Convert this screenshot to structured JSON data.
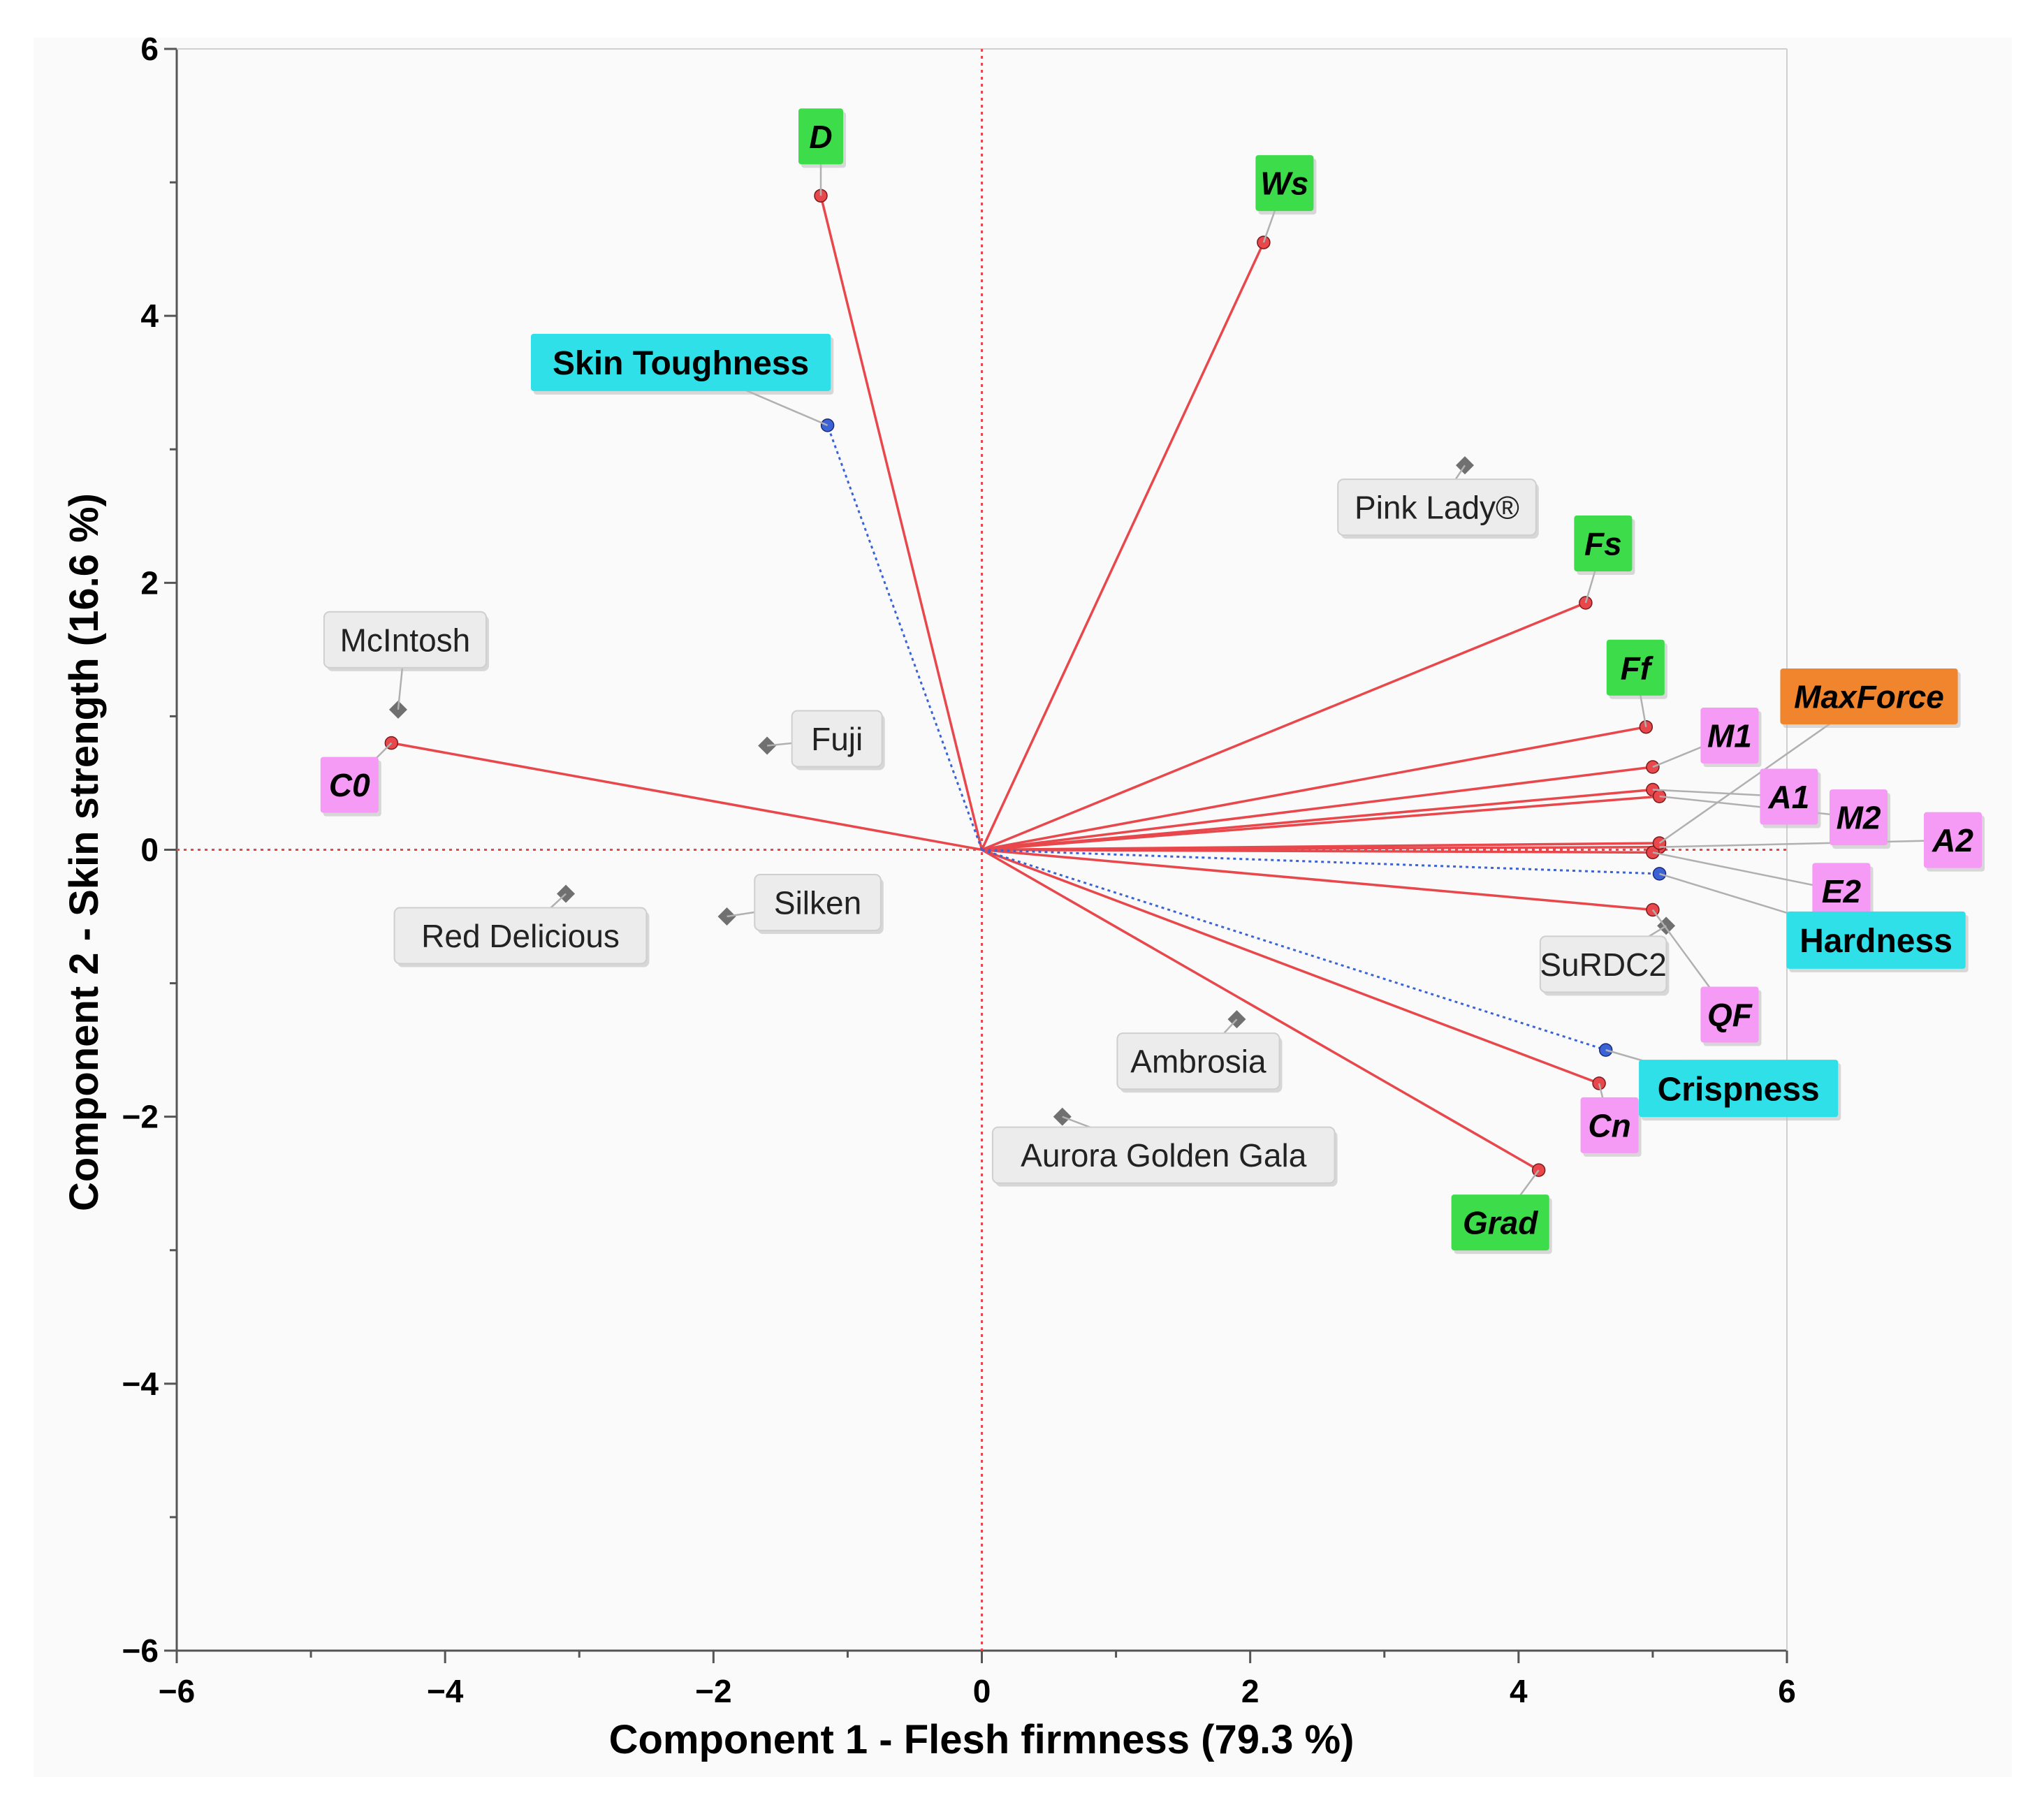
{
  "chart_data": {
    "type": "scatter",
    "subtype": "pca-biplot",
    "title": "",
    "xlabel": "Component 1 - Flesh firmness (79.3 %)",
    "ylabel": "Component 2 - Skin strength (16.6 %)",
    "xlim": [
      -6,
      6
    ],
    "ylim": [
      -6,
      6
    ],
    "xticks": [
      -6,
      -4,
      -2,
      0,
      2,
      4,
      6
    ],
    "yticks": [
      -6,
      -4,
      -2,
      0,
      2,
      4,
      6
    ],
    "xtick_labels": [
      "−6",
      "−4",
      "−2",
      "0",
      "2",
      "4",
      "6"
    ],
    "ytick_labels": [
      "−6",
      "−4",
      "−2",
      "0",
      "2",
      "4",
      "6"
    ],
    "grid": false,
    "reference_lines": {
      "x": 0,
      "y": 0,
      "color": "#e8474c",
      "style": "dotted"
    },
    "observations": [
      {
        "name": "Pink Lady®",
        "x": 3.6,
        "y": 2.88
      },
      {
        "name": "McIntosh",
        "x": -4.35,
        "y": 1.05
      },
      {
        "name": "Fuji",
        "x": -1.6,
        "y": 0.78
      },
      {
        "name": "Red Delicious",
        "x": -3.1,
        "y": -0.33
      },
      {
        "name": "Silken",
        "x": -1.9,
        "y": -0.5
      },
      {
        "name": "SuRDC2",
        "x": 5.1,
        "y": -0.57
      },
      {
        "name": "Ambrosia",
        "x": 1.9,
        "y": -1.27
      },
      {
        "name": "Aurora Golden Gala",
        "x": 0.6,
        "y": -2.0
      }
    ],
    "variable_groups": [
      {
        "group": "green",
        "color": "#3ddc4a"
      },
      {
        "group": "magenta",
        "color": "#f59af5"
      },
      {
        "group": "orange",
        "color": "#f0852e"
      },
      {
        "group": "cyan",
        "color": "#2fe0e8"
      }
    ],
    "variables": [
      {
        "name": "D",
        "x": -1.2,
        "y": 4.9,
        "group": "green"
      },
      {
        "name": "Ws",
        "x": 2.1,
        "y": 4.55,
        "group": "green"
      },
      {
        "name": "Fs",
        "x": 4.5,
        "y": 1.85,
        "group": "green"
      },
      {
        "name": "Ff",
        "x": 4.95,
        "y": 0.92,
        "group": "green"
      },
      {
        "name": "Grad",
        "x": 4.15,
        "y": -2.4,
        "group": "green"
      },
      {
        "name": "C0",
        "x": -4.4,
        "y": 0.8,
        "group": "magenta"
      },
      {
        "name": "M1",
        "x": 5.0,
        "y": 0.62,
        "group": "magenta"
      },
      {
        "name": "A1",
        "x": 5.0,
        "y": 0.45,
        "group": "magenta"
      },
      {
        "name": "M2",
        "x": 5.05,
        "y": 0.4,
        "group": "magenta"
      },
      {
        "name": "A2",
        "x": 5.05,
        "y": 0.02,
        "group": "magenta"
      },
      {
        "name": "E2",
        "x": 5.0,
        "y": -0.02,
        "group": "magenta"
      },
      {
        "name": "QF",
        "x": 5.0,
        "y": -0.45,
        "group": "magenta"
      },
      {
        "name": "Cn",
        "x": 4.6,
        "y": -1.75,
        "group": "magenta"
      },
      {
        "name": "MaxForce",
        "x": 5.05,
        "y": 0.05,
        "group": "orange"
      }
    ],
    "sensory_variables": [
      {
        "name": "Skin Toughness",
        "x": -1.15,
        "y": 3.18,
        "group": "cyan"
      },
      {
        "name": "Hardness",
        "x": 5.05,
        "y": -0.18,
        "group": "cyan"
      },
      {
        "name": "Crispness",
        "x": 4.65,
        "y": -1.5,
        "group": "cyan"
      }
    ]
  },
  "colors": {
    "vector": "#e8474c",
    "vector_head": "#e8474c",
    "sensory_vector": "#3b63d6",
    "observation_marker": "#707070",
    "observation_box": "#ececec",
    "leader": "#b0b0b0",
    "axis": "#555555"
  },
  "icons": {
    "observation_marker": "diamond",
    "vector_head": "dot"
  }
}
